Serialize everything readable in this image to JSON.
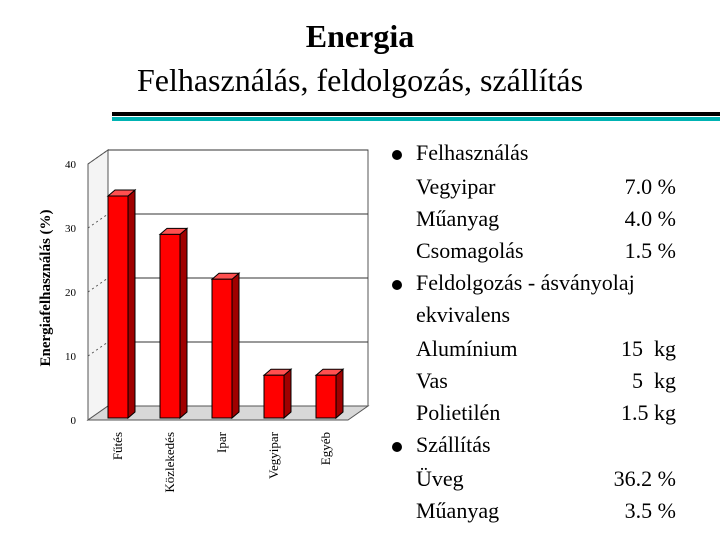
{
  "title": "Energia",
  "subtitle": "Felhasználás, feldolgozás, szállítás",
  "chart_data": {
    "type": "bar",
    "ylabel": "Energiafelhasználás (%)",
    "categories": [
      "Fűtés",
      "Közlekedés",
      "Ipar",
      "Vegyipar",
      "Egyéb"
    ],
    "values": [
      35,
      29,
      22,
      7,
      7
    ],
    "ylim": [
      0,
      40
    ],
    "yticks": [
      "0",
      "10",
      "20",
      "30",
      "40"
    ],
    "bar_color": "#ff0000",
    "grid": false
  },
  "bullets": [
    {
      "label": "Felhasználás",
      "items": [
        {
          "name": "Vegyipar",
          "value": "7.0 %"
        },
        {
          "name": "Műanyag",
          "value": "4.0 %"
        },
        {
          "name": "Csomagolás",
          "value": "1.5 %"
        }
      ]
    },
    {
      "label": "Feldolgozás - ásványolaj",
      "label2": "ekvivalens",
      "items": [
        {
          "name": "Alumínium",
          "value": "15  kg"
        },
        {
          "name": "Vas",
          "value": "5  kg"
        },
        {
          "name": "Polietilén",
          "value": "1.5 kg"
        }
      ]
    },
    {
      "label": "Szállítás",
      "items": [
        {
          "name": "Üveg",
          "value": "36.2 %"
        },
        {
          "name": "Műanyag",
          "value": "3.5 %"
        }
      ]
    }
  ]
}
